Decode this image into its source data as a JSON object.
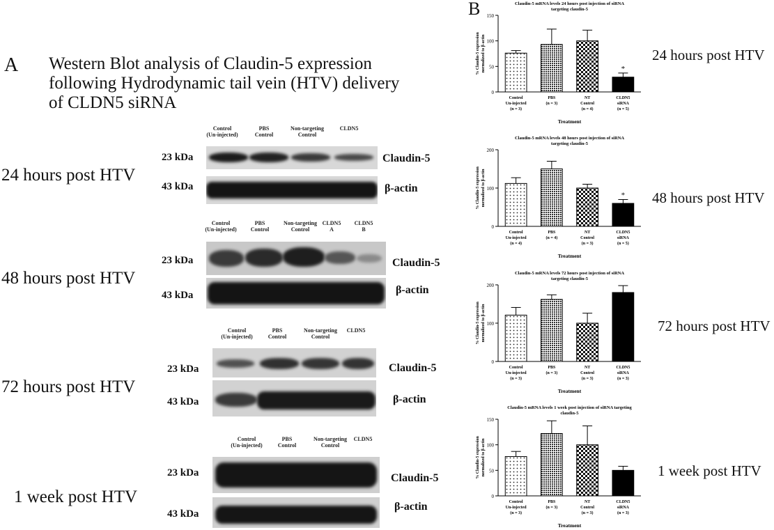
{
  "panel_a": {
    "letter": "A",
    "title_lines": [
      "Western Blot analysis of Claudin-5 expression",
      "following Hydrodynamic tail vein (HTV) delivery",
      "of CLDN5 siRNA"
    ],
    "kda_top": "23 kDa",
    "kda_bottom": "43 kDa",
    "protein_top": "Claudin-5",
    "protein_bottom": "β-actin",
    "blots": [
      {
        "timepoint": "24 hours post HTV",
        "lanes": [
          "Control\n(Un-injected)",
          "PBS\nControl",
          "Non-targeting\nControl",
          "CLDN5"
        ]
      },
      {
        "timepoint": "48 hours post HTV",
        "lanes": [
          "Control\n(Un-injected)",
          "PBS\nControl",
          "Non-targeting\nControl",
          "CLDN5\nA",
          "CLDN5\nB"
        ]
      },
      {
        "timepoint": "72 hours post HTV",
        "lanes": [
          "Control\n(Un-injected)",
          "PBS\nControl",
          "Non-targeting\nControl",
          "CLDN5"
        ]
      },
      {
        "timepoint": "1 week post HTV",
        "lanes": [
          "Control\n(Un-injected)",
          "PBS\nControl",
          "Non-targeting\nControl",
          "CLDN5"
        ]
      }
    ]
  },
  "panel_b": {
    "letter": "B",
    "timepoints": [
      "24 hours post HTV",
      "48 hours post HTV",
      "72 hours post HTV",
      "1 week post HTV"
    ]
  },
  "chart_data": [
    {
      "type": "bar",
      "title": "Claudin-5 mRNA levels 24 hours post injection of siRNA targeting claudin-5",
      "xlabel": "Treatment",
      "ylabel": "% Claudin-5 expression normalized to β-actin",
      "categories": [
        "Control Un-injected (n = 3)",
        "PBS (n = 3)",
        "NT Control (n = 4)",
        "CLDN5 siRNA (n = 5)"
      ],
      "values": [
        76,
        93,
        100,
        29
      ],
      "errors": [
        5,
        30,
        21,
        8
      ],
      "ylim": [
        0,
        150
      ],
      "yticks": [
        0,
        50,
        100,
        150
      ],
      "significance": [
        "",
        "",
        "",
        "*"
      ]
    },
    {
      "type": "bar",
      "title": "Claudin-5 mRNA levels 48 hours post injection of siRNA targeting claudin-5",
      "xlabel": "Treatment",
      "ylabel": "% Claudin-5 expression normalized to β-actin",
      "categories": [
        "Control Un-injected (n = 4)",
        "PBS (n = 4)",
        "NT Control (n = 3)",
        "CLDN5 siRNA (n = 5)"
      ],
      "values": [
        112,
        150,
        100,
        60
      ],
      "errors": [
        15,
        20,
        10,
        10
      ],
      "ylim": [
        0,
        200
      ],
      "yticks": [
        0,
        100,
        200
      ],
      "significance": [
        "",
        "",
        "",
        "*"
      ]
    },
    {
      "type": "bar",
      "title": "Claudin-5 mRNA levels 72 hours post injection of siRNA targeting claudin-5",
      "xlabel": "Treatment",
      "ylabel": "% Claudin-5 expression normalized to β-actin",
      "categories": [
        "Control Un-injected (n = 3)",
        "PBS (n = 3)",
        "NT Control (n = 3)",
        "CLDN5 siRNA (n = 3)"
      ],
      "values": [
        121,
        162,
        100,
        180
      ],
      "errors": [
        20,
        12,
        26,
        18
      ],
      "ylim": [
        0,
        200
      ],
      "yticks": [
        0,
        100,
        200
      ],
      "significance": [
        "",
        "",
        "",
        ""
      ]
    },
    {
      "type": "bar",
      "title": "Claudin-5 mRNA levels 1 week post injection of siRNA targeting claudin-5",
      "xlabel": "Treatment",
      "ylabel": "% Claudin-5 expression normalized to β-actin",
      "categories": [
        "Control Un-injected (n = 3)",
        "PBS (n = 3)",
        "NT Control (n = 3)",
        "CLDN5 siRNA (n = 3)"
      ],
      "values": [
        77,
        122,
        100,
        50
      ],
      "errors": [
        10,
        25,
        37,
        8
      ],
      "ylim": [
        0,
        150
      ],
      "yticks": [
        0,
        50,
        100,
        150
      ],
      "significance": [
        "",
        "",
        "",
        ""
      ]
    }
  ]
}
